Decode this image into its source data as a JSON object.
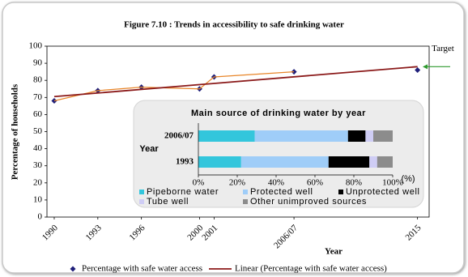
{
  "chart_data": [
    {
      "type": "scatter",
      "title": "Figure 7.10 : Trends in accessibility to safe drinking water",
      "xlabel": "Year",
      "ylabel": "Percentage of households",
      "x": [
        1990,
        1993,
        1996,
        2000,
        2001,
        2006.5,
        2015
      ],
      "xlim": [
        1989.5,
        2015.8
      ],
      "xticks": [
        1990,
        1993,
        1996,
        2000,
        2001,
        {
          "value": 2006.5,
          "label": "2006/07"
        },
        2015
      ],
      "ylim": [
        0,
        100
      ],
      "yticks": [
        0,
        10,
        20,
        30,
        40,
        50,
        60,
        70,
        80,
        90,
        100
      ],
      "grid": false,
      "series": [
        {
          "name": "Percentage with safe water access",
          "color": "#1f1f7a",
          "marker": "diamond",
          "values": [
            68,
            74,
            76,
            75,
            82,
            85,
            86
          ]
        },
        {
          "color": "#e8862a",
          "style": "line",
          "values": [
            68,
            74,
            76,
            75,
            82,
            85,
            null
          ]
        },
        {
          "name": "Linear (Percentage with safe water access)",
          "color": "#8b1a1a",
          "style": "line",
          "x": [
            1990,
            2015
          ],
          "values": [
            70.5,
            88
          ]
        }
      ],
      "annotations": [
        {
          "text": "Target",
          "y": 88,
          "color": "#2e9a2e"
        }
      ]
    },
    {
      "type": "bar",
      "orientation": "horizontal",
      "stacked": true,
      "title": "Main source of drinking water by year",
      "ylabel": "Year",
      "xlabel": "(%)",
      "categories": [
        "2006/07",
        "1993"
      ],
      "xlim": [
        0,
        100
      ],
      "xticks": [
        {
          "value": 0,
          "label": "0%"
        },
        {
          "value": 20,
          "label": "20%"
        },
        {
          "value": 40,
          "label": "40%"
        },
        {
          "value": 60,
          "label": "60%"
        },
        {
          "value": 80,
          "label": "80%"
        },
        {
          "value": 100,
          "label": "100%"
        }
      ],
      "series": [
        {
          "name": "Pipeborne water",
          "color": "#33c6dc",
          "values": [
            29,
            22
          ]
        },
        {
          "name": "Protected well",
          "color": "#9fcdf8",
          "values": [
            48,
            45
          ]
        },
        {
          "name": "Unprotected well",
          "color": "#000000",
          "values": [
            9,
            21
          ]
        },
        {
          "name": "Tube well",
          "color": "#cfcdf5",
          "values": [
            4,
            4
          ]
        },
        {
          "name": "Other unimproved sources",
          "color": "#8c8c8c",
          "values": [
            10,
            8
          ]
        }
      ]
    }
  ]
}
